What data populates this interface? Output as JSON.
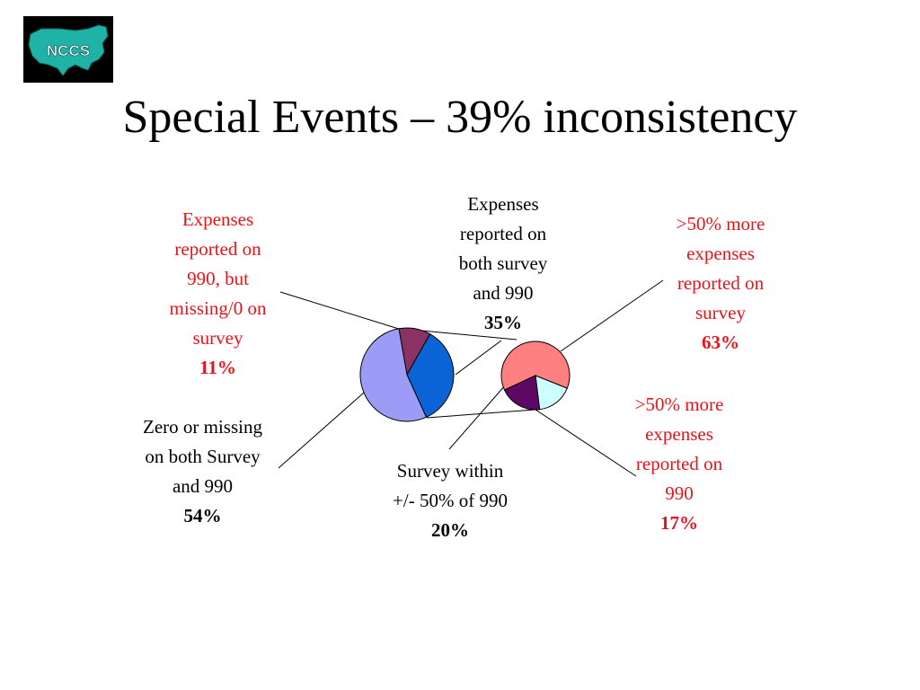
{
  "logo": {
    "text": "NCCS"
  },
  "title": "Special Events – 39% inconsistency",
  "colors": {
    "left_missing": "#8b3163",
    "left_both": "#0b64d6",
    "left_zero": "#9c9cf7",
    "right_more_survey": "#ff8080",
    "right_within": "#5e0866",
    "right_more_990": "#ccffff",
    "accent_red": "#e8141b"
  },
  "chart_data": [
    {
      "type": "pie",
      "slices": [
        {
          "label": "Expenses\nreported on\n990, but\nmissing/0 on\nsurvey",
          "value": 11,
          "value_label": "11%",
          "color": "#8b3163"
        },
        {
          "label": "Expenses\nreported on\nboth survey\nand 990",
          "value": 35,
          "value_label": "35%",
          "color": "#0b64d6"
        },
        {
          "label": "Zero or missing\non both Survey\nand 990",
          "value": 54,
          "value_label": "54%",
          "color": "#9c9cf7"
        }
      ]
    },
    {
      "type": "pie",
      "slices": [
        {
          "label": ">50% more\nexpenses\nreported on\nsurvey",
          "value": 63,
          "value_label": "63%",
          "color": "#ff8080"
        },
        {
          "label": ">50% more\nexpenses\nreported on\n990",
          "value": 17,
          "value_label": "17%",
          "color": "#ccffff"
        },
        {
          "label": "Survey within\n+/- 50% of 990",
          "value": 20,
          "value_label": "20%",
          "color": "#5e0866"
        }
      ]
    }
  ]
}
